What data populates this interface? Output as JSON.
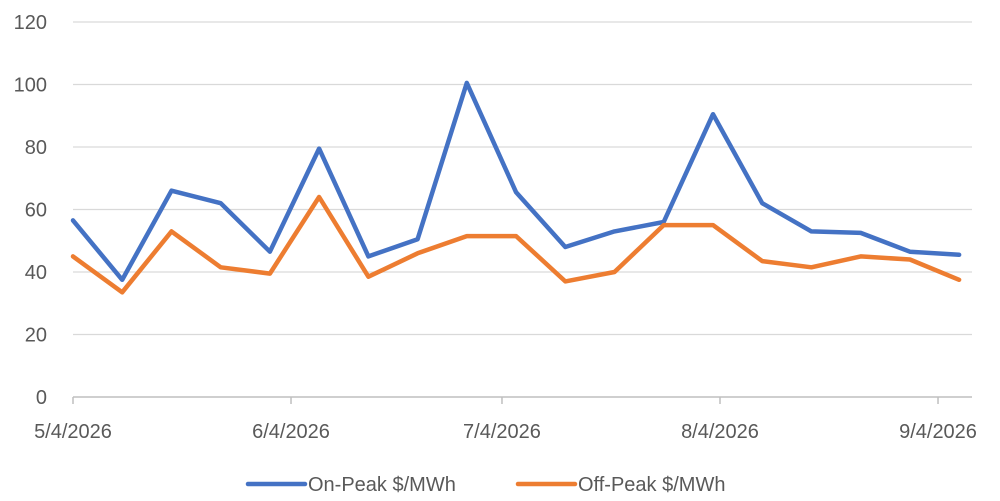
{
  "chart_data": {
    "type": "line",
    "x": [
      "5/4/2026",
      "5/11/2026",
      "5/18/2026",
      "5/25/2026",
      "6/1/2026",
      "6/8/2026",
      "6/15/2026",
      "6/22/2026",
      "6/29/2026",
      "7/6/2026",
      "7/13/2026",
      "7/20/2026",
      "7/27/2026",
      "8/3/2026",
      "8/10/2026",
      "8/17/2026",
      "8/24/2026",
      "8/31/2026",
      "9/7/2026"
    ],
    "x_ticks": [
      "5/4/2026",
      "6/4/2026",
      "7/4/2026",
      "8/4/2026",
      "9/4/2026"
    ],
    "series": [
      {
        "name": "On-Peak $/MWh",
        "color": "#4472C4",
        "values": [
          56.5,
          37.5,
          66,
          62,
          46.5,
          79.5,
          45,
          50.5,
          100.5,
          65.5,
          48,
          53,
          56,
          90.5,
          62,
          53,
          52.5,
          46.5,
          45.5
        ]
      },
      {
        "name": "Off-Peak $/MWh",
        "color": "#ED7D31",
        "values": [
          45,
          33.5,
          53,
          41.5,
          39.5,
          64,
          38.5,
          46,
          51.5,
          51.5,
          37,
          40,
          55,
          55,
          43.5,
          41.5,
          45,
          44,
          37.5
        ]
      }
    ],
    "ylim": [
      0,
      120
    ],
    "y_ticks": [
      "0",
      "20",
      "40",
      "60",
      "80",
      "100",
      "120"
    ],
    "grid": true,
    "legend_position": "bottom",
    "title": "",
    "xlabel": "",
    "ylabel": ""
  }
}
